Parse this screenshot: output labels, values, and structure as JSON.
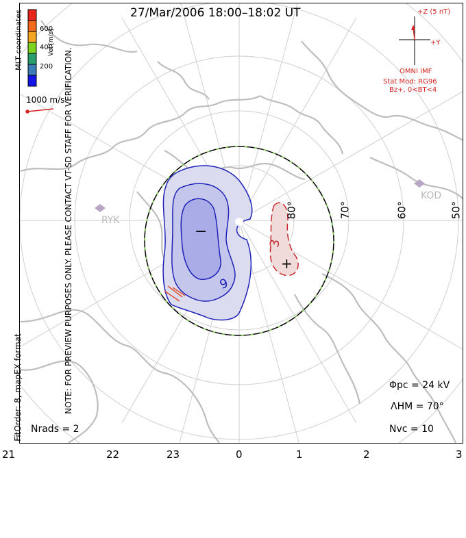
{
  "title": "27/Mar/2006 18:00–18:02 UT",
  "watermark": "NOTE: FOR PREVIEW PURPOSES ONLY. PLEASE CONTACT VT-SD STAFF FOR VERIFICATION.",
  "fit_info": "FitOrder: 8, mapEX format",
  "coordinate_label": "MLT coordinates",
  "colorbar": {
    "label": "Vel [m/s]",
    "ticks": [
      "600",
      "400",
      "200"
    ],
    "colors": [
      "#e8251a",
      "#f46a1c",
      "#f5a623",
      "#7ed321",
      "#2a9f6e",
      "#3d7db5",
      "#1414e6"
    ]
  },
  "velocity_reference": "1000 m/s",
  "imf": {
    "z_label": "+Z (5 nT)",
    "y_label": "+Y",
    "source": "OMNI IMF",
    "stat_mod": "Stat Mod: RG96",
    "condition": "Bz+, 0<BT<4"
  },
  "stats": {
    "phi_pc": "Φpc = 24 kV",
    "lambda_hm": "ΛHM = 70°",
    "n_vc": "Nvc = 10",
    "n_rads": "Nrads = 2"
  },
  "mlt_labels": [
    "21",
    "22",
    "23",
    "0",
    "1",
    "2",
    "3"
  ],
  "lat_labels": [
    "80°",
    "70°",
    "60°",
    "50°"
  ],
  "stations": [
    "KOD",
    "RYK"
  ],
  "contours": {
    "negative_value": "9",
    "positive_value": "3",
    "min_symbol": "−",
    "max_symbol": "+"
  },
  "colors": {
    "contour_neg": "#1e22b8",
    "contour_pos": "#c8282a",
    "fill_neg": "#dcdcf0",
    "fill_neg2": "#c4c6ec",
    "fill_neg3": "#a9ace6",
    "fill_pos": "#f0dada",
    "boundary_dash": "#7fd34a",
    "grid": "#cfcfcf",
    "coast": "#bdbdbd"
  }
}
